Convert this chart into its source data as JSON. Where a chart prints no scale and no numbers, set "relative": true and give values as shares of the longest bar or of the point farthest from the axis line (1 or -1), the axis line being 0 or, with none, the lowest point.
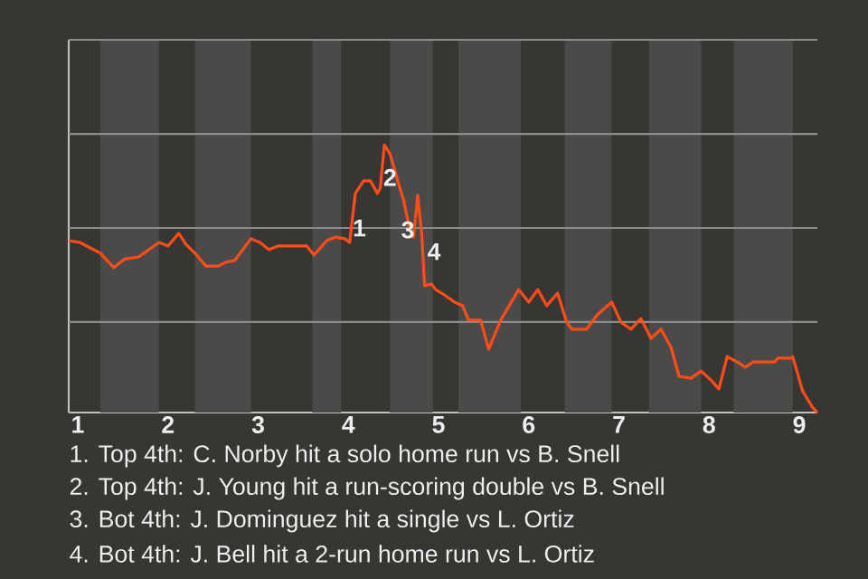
{
  "chart_data": {
    "type": "line",
    "relative": true,
    "x": [
      0.9,
      1.025,
      1.25,
      1.4,
      1.525,
      1.675,
      1.9,
      2,
      2.12,
      2.2,
      2.3,
      2.42,
      2.56,
      2.64,
      2.74,
      2.92,
      3.02,
      3.12,
      3.22,
      3.54,
      3.62,
      3.76,
      3.86,
      3.96,
      4.015,
      4.077,
      4.169,
      4.246,
      4.323,
      4.354,
      4.4,
      4.462,
      4.554,
      4.615,
      4.677,
      4.723,
      4.769,
      4.815,
      4.846,
      4.923,
      4.969,
      5.067,
      5.178,
      5.267,
      5.333,
      5.467,
      5.556,
      5.689,
      5.889,
      6,
      6.1,
      6.2,
      6.32,
      6.42,
      6.48,
      6.64,
      6.76,
      6.92,
      7.022,
      7.133,
      7.244,
      7.356,
      7.467,
      7.578,
      7.667,
      7.8,
      7.911,
      8.018,
      8.109,
      8.2,
      8.309,
      8.4,
      8.491,
      8.727,
      8.764,
      8.909,
      8.927,
      9.036,
      9.145,
      9.2
    ],
    "series": [
      {
        "color": "#ff4d1a",
        "values": [
          0.642,
          0.635,
          0.595,
          0.541,
          0.574,
          0.581,
          0.635,
          0.622,
          0.669,
          0.628,
          0.595,
          0.547,
          0.547,
          0.561,
          0.568,
          0.649,
          0.635,
          0.608,
          0.622,
          0.622,
          0.588,
          0.642,
          0.655,
          0.649,
          0.635,
          0.818,
          0.865,
          0.865,
          0.818,
          0.838,
          1,
          0.966,
          0.858,
          0.791,
          0.689,
          0.655,
          0.811,
          0.662,
          0.473,
          0.48,
          0.459,
          0.439,
          0.412,
          0.399,
          0.345,
          0.345,
          0.236,
          0.345,
          0.459,
          0.412,
          0.459,
          0.399,
          0.446,
          0.338,
          0.311,
          0.311,
          0.365,
          0.412,
          0.338,
          0.311,
          0.351,
          0.277,
          0.311,
          0.243,
          0.135,
          0.128,
          0.155,
          0.122,
          0.088,
          0.209,
          0.189,
          0.169,
          0.189,
          0.189,
          0.203,
          0.203,
          0.209,
          0.081,
          0.02,
          0
        ]
      }
    ],
    "xlim": [
      0.9,
      9.2
    ],
    "xticks": [
      1,
      2,
      3,
      4,
      5,
      6,
      7,
      8,
      9
    ],
    "bands": [
      {
        "axis": "x",
        "from": 1.25,
        "to": 1.9,
        "color": "#4b4a48"
      },
      {
        "axis": "x",
        "from": 2.3,
        "to": 2.92,
        "color": "#4b4a48"
      },
      {
        "axis": "x",
        "from": 3.6,
        "to": 3.92,
        "color": "#4b4a48"
      },
      {
        "axis": "x",
        "from": 4.462,
        "to": 4.938,
        "color": "#4b4a48"
      },
      {
        "axis": "x",
        "from": 5.222,
        "to": 5.911,
        "color": "#4b4a48"
      },
      {
        "axis": "x",
        "from": 6.4,
        "to": 6.92,
        "color": "#4b4a48"
      },
      {
        "axis": "x",
        "from": 7.333,
        "to": 7.911,
        "color": "#4b4a48"
      },
      {
        "axis": "x",
        "from": 8.273,
        "to": 8.927,
        "color": "#4b4a48"
      }
    ],
    "ref_lines": [
      {
        "axis": "y",
        "value": 0.338,
        "color": "#8c8c8c"
      },
      {
        "axis": "y",
        "value": 0.689,
        "color": "#8c8c8c"
      },
      {
        "axis": "y",
        "value": 1.04,
        "color": "#8c8c8c"
      },
      {
        "axis": "y",
        "value": 1.392,
        "color": "#8c8c8c"
      }
    ],
    "annotations": [
      {
        "text": "1",
        "x": 4.123,
        "y": 0.689
      },
      {
        "text": "2",
        "x": 4.462,
        "y": 0.878
      },
      {
        "text": "3",
        "x": 4.66,
        "y": 0.682
      },
      {
        "text": "4",
        "x": 4.95,
        "y": 0.601
      },
      "1. Top 4th: C. Norby hit a solo home run vs B. Snell",
      "2. Top 4th: J. Young hit a run-scoring double vs B. Snell",
      "3. Bot 4th: J. Dominguez hit a single vs L. Ortiz",
      "4. Bot 4th: J. Bell hit a 2-run home run vs L. Ortiz"
    ],
    "marker": "none",
    "line_style": "solid"
  }
}
